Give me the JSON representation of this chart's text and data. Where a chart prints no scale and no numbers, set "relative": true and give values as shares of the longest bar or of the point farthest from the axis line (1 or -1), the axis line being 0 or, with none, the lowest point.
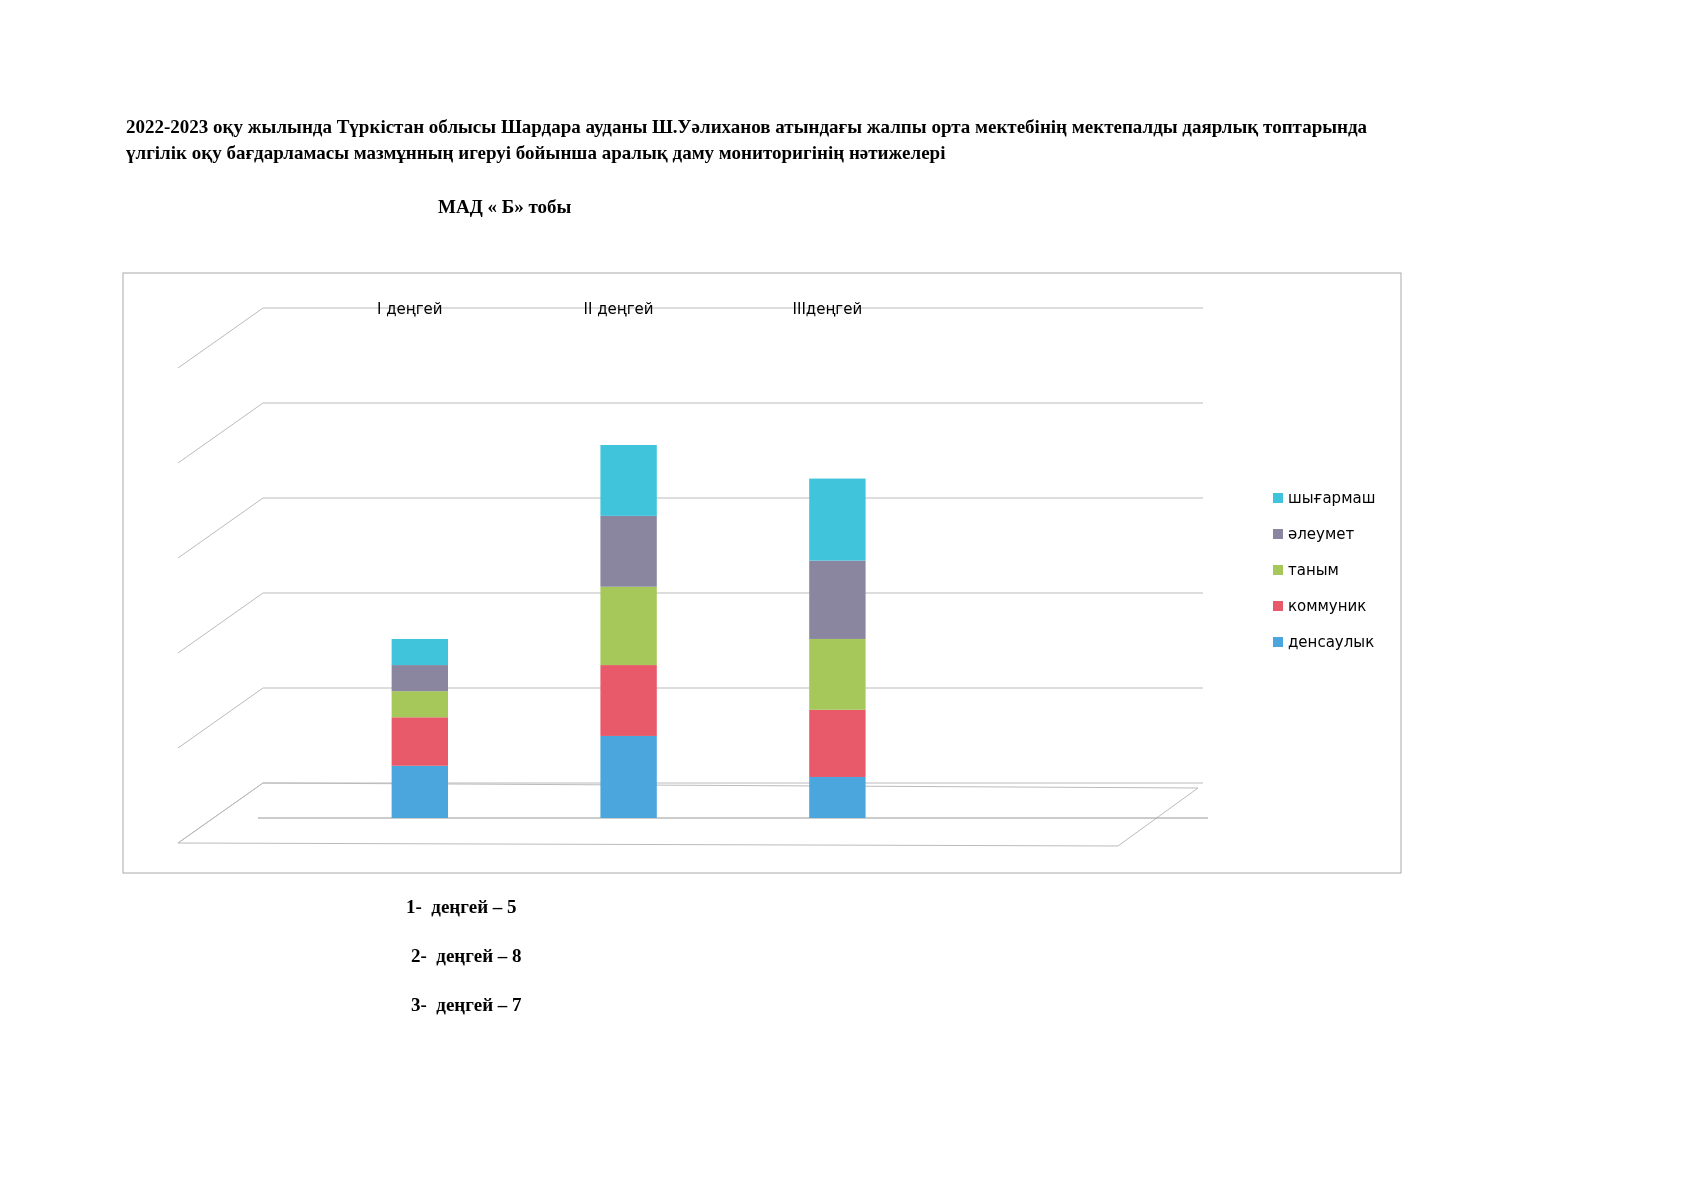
{
  "chart_data": {
    "type": "bar",
    "title": "2022-2023 оқу жылында Түркістан облысы Шардара ауданы Ш.Уәлиханов атындағы жалпы орта мектебінің мектепалды даярлық топтарында үлгілік оқу бағдарламасы мазмұнның игеруі бойынша аралық даму мониторигінің нәтижелері",
    "subtitle": "МАД « Б» тобы",
    "categories": [
      "I деңгей",
      "II деңгей",
      "IIIдеңгей",
      null
    ],
    "stacked": true,
    "relative": true,
    "grid": true,
    "legend": "right",
    "series": [
      {
        "name": "денсаулык",
        "color": "#4aa6dc",
        "values": [
          0.14,
          0.22,
          0.11,
          null
        ]
      },
      {
        "name": "коммуник",
        "color": "#e8596a",
        "values": [
          0.13,
          0.19,
          0.18,
          null
        ]
      },
      {
        "name": "таным",
        "color": "#a6c85a",
        "values": [
          0.07,
          0.21,
          0.19,
          null
        ]
      },
      {
        "name": "әлеумет",
        "color": "#8a86a0",
        "values": [
          0.07,
          0.19,
          0.21,
          null
        ]
      },
      {
        "name": "шығармаш",
        "color": "#3fc4dc",
        "values": [
          0.07,
          0.19,
          0.22,
          null
        ]
      }
    ],
    "annotations": [
      "1-  деңгей – 5",
      "2-  деңгей – 8",
      "3-  деңгей – 7"
    ]
  }
}
